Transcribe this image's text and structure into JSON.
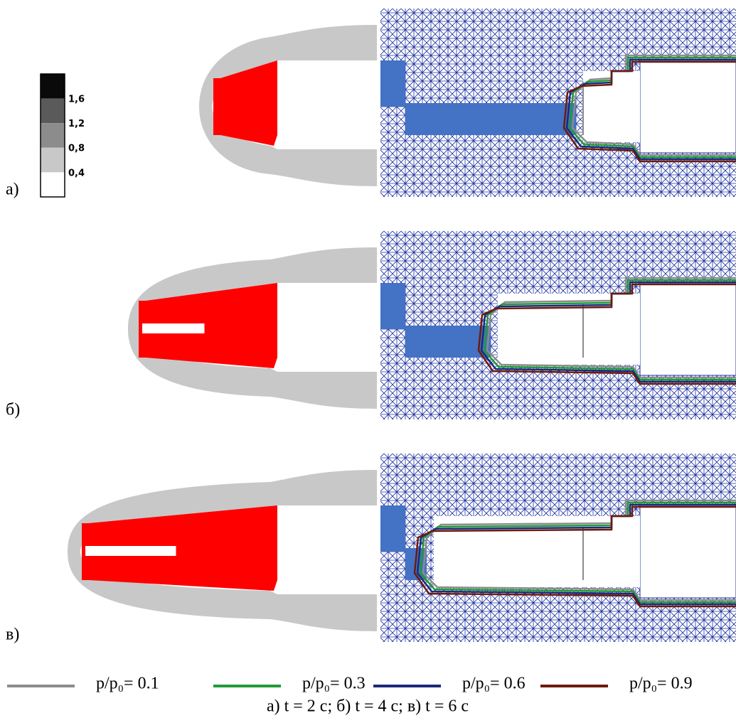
{
  "colorbar": {
    "labels": [
      "1,6",
      "1,2",
      "0,8",
      "0,4"
    ],
    "colors": [
      "#0a0a0a",
      "#5a5a5a",
      "#8c8c8c",
      "#c8c8c8",
      "#ffffff"
    ]
  },
  "panels": [
    {
      "label": "а)"
    },
    {
      "label": "б)"
    },
    {
      "label": "в)"
    }
  ],
  "legend": [
    {
      "label": "p/p₀= 0.1",
      "color": "#8c8c8c"
    },
    {
      "label": "p/p₀= 0.3",
      "color": "#1f9a3a"
    },
    {
      "label": "p/p₀= 0.6",
      "color": "#1b2a7a"
    },
    {
      "label": "p/p₀= 0.9",
      "color": "#6e1a0c"
    }
  ],
  "caption": "а) t = 2 с; б) t = 4 с; в) t = 6 с"
}
